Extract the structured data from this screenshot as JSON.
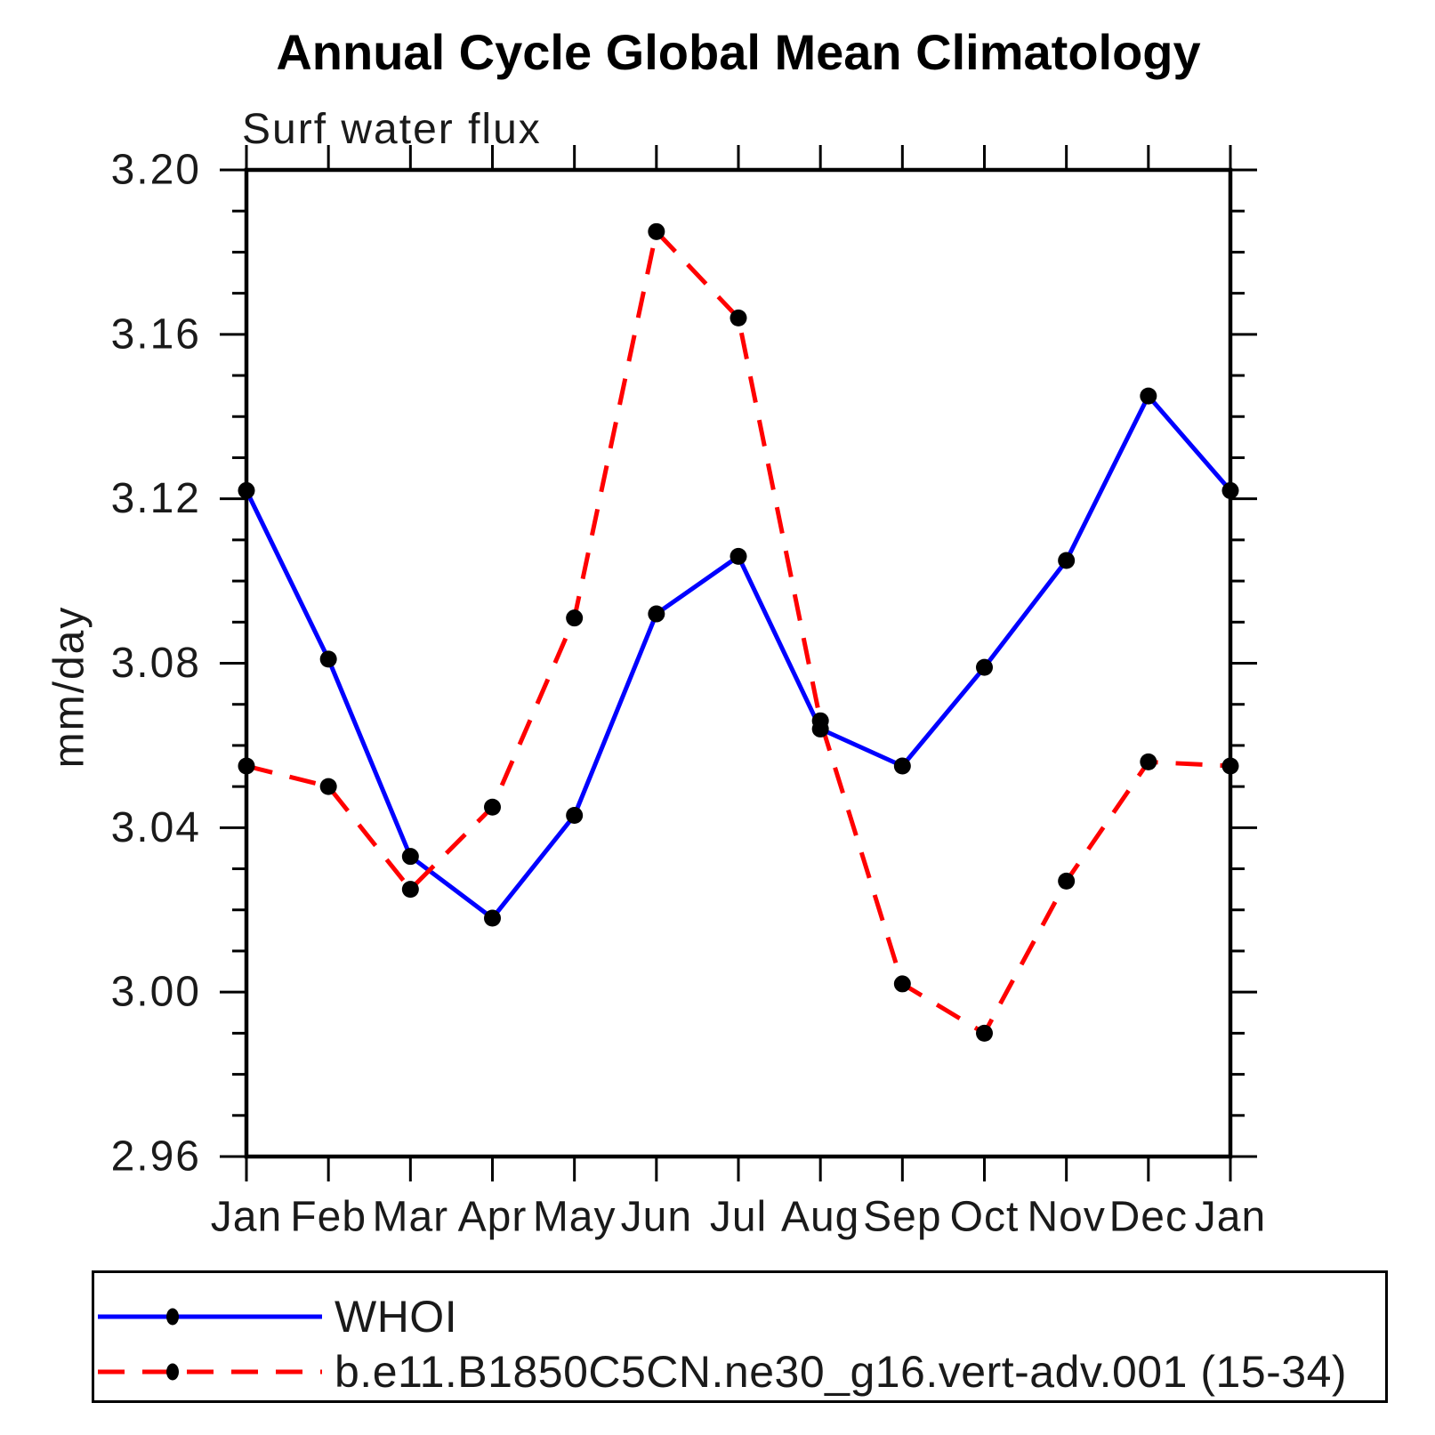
{
  "chart_data": {
    "type": "line",
    "title": "Annual Cycle Global Mean Climatology",
    "subtitle": "Surf water flux",
    "xlabel": "",
    "ylabel": "mm/day",
    "categories": [
      "Jan",
      "Feb",
      "Mar",
      "Apr",
      "May",
      "Jun",
      "Jul",
      "Aug",
      "Sep",
      "Oct",
      "Nov",
      "Dec",
      "Jan"
    ],
    "ylim": [
      2.96,
      3.2
    ],
    "ytick_major_step": 0.04,
    "ytick_minor_step": 0.01,
    "ytick_labels": [
      "2.96",
      "3.00",
      "3.04",
      "3.08",
      "3.12",
      "3.16",
      "3.20"
    ],
    "grid": false,
    "legend_position": "bottom",
    "frame_color": "#000000",
    "marker_color": "#000000",
    "series": [
      {
        "name": "WHOI",
        "color": "#0000ff",
        "style": "solid",
        "marker": "circle",
        "values": [
          3.122,
          3.081,
          3.033,
          3.018,
          3.043,
          3.092,
          3.106,
          3.064,
          3.055,
          3.079,
          3.105,
          3.145,
          3.122
        ]
      },
      {
        "name": "b.e11.B1850C5CN.ne30_g16.vert-adv.001 (15-34)",
        "color": "#ff0000",
        "style": "dashed",
        "marker": "circle",
        "values": [
          3.055,
          3.05,
          3.025,
          3.045,
          3.091,
          3.185,
          3.164,
          3.066,
          3.002,
          2.99,
          3.027,
          3.056,
          3.055
        ]
      }
    ]
  }
}
